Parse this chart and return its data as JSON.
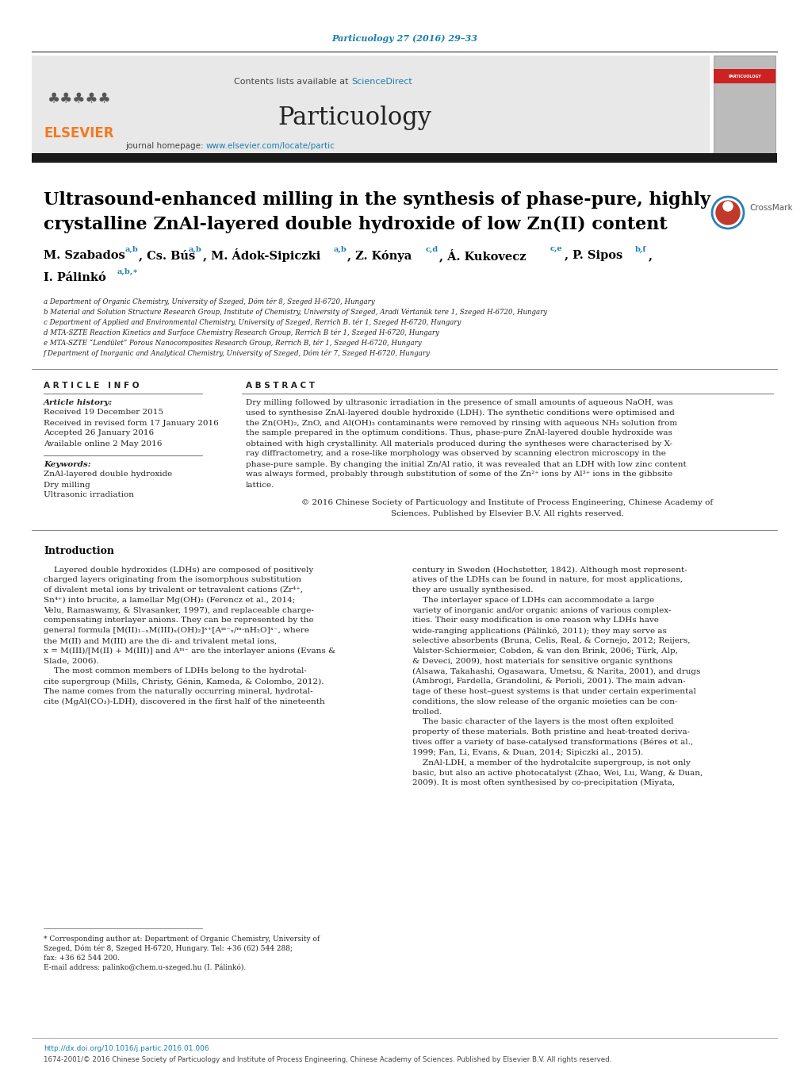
{
  "bg_color": "#ffffff",
  "top_citation": "Particuology 27 (2016) 29–33",
  "top_citation_color": "#1a7fad",
  "header_bg": "#e8e8e8",
  "contents_text": "Contents lists available at ",
  "sciencedirect_text": "ScienceDirect",
  "sciencedirect_color": "#1a7fad",
  "journal_name": "Particuology",
  "journal_homepage_text": "journal homepage: ",
  "journal_url": "www.elsevier.com/locate/partic",
  "journal_url_color": "#1a7fad",
  "elsevier_color": "#f47920",
  "separator_color": "#000000",
  "dark_bar_color": "#1a1a1a",
  "title_line1": "Ultrasound-enhanced milling in the synthesis of phase-pure, highly",
  "title_line2": "crystalline ZnAl-layered double hydroxide of low Zn(II) content",
  "title_color": "#000000",
  "sup_color": "#1a7fad",
  "affil_a": "a Department of Organic Chemistry, University of Szeged, Dóm tér 8, Szeged H-6720, Hungary",
  "affil_b": "b Material and Solution Structure Research Group, Institute of Chemistry, University of Szeged, Aradi Vértanúk tere 1, Szeged H-6720, Hungary",
  "affil_c": "c Department of Applied and Environmental Chemistry, University of Szeged, Rerrich B. tér 1, Szeged H-6720, Hungary",
  "affil_d": "d MTA-SZTE Reaction Kinetics and Surface Chemistry Research Group, Rerrich B tér 1, Szeged H-6720, Hungary",
  "affil_e": "e MTA-SZTE “Lendület” Porous Nanocomposites Research Group, Rerrich B, tér 1, Szeged H-6720, Hungary",
  "affil_f": "f Department of Inorganic and Analytical Chemistry, University of Szeged, Dóm tér 7, Szeged H-6720, Hungary",
  "article_info_header": "A R T I C L E   I N F O",
  "abstract_header": "A B S T R A C T",
  "article_history_label": "Article history:",
  "received1": "Received 19 December 2015",
  "received2": "Received in revised form 17 January 2016",
  "accepted": "Accepted 26 January 2016",
  "available": "Available online 2 May 2016",
  "keywords_label": "Keywords:",
  "keyword1": "ZnAl-layered double hydroxide",
  "keyword2": "Dry milling",
  "keyword3": "Ultrasonic irradiation",
  "abstract_text_lines": [
    "Dry milling followed by ultrasonic irradiation in the presence of small amounts of aqueous NaOH, was",
    "used to synthesise ZnAl-layered double hydroxide (LDH). The synthetic conditions were optimised and",
    "the Zn(OH)₂, ZnO, and Al(OH)₃ contaminants were removed by rinsing with aqueous NH₃ solution from",
    "the sample prepared in the optimum conditions. Thus, phase-pure ZnAl-layered double hydroxide was",
    "obtained with high crystallinity. All materials produced during the syntheses were characterised by X-",
    "ray diffractometry, and a rose-like morphology was observed by scanning electron microscopy in the",
    "phase-pure sample. By changing the initial Zn/Al ratio, it was revealed that an LDH with low zinc content",
    "was always formed, probably through substitution of some of the Zn²⁺ ions by Al³⁺ ions in the gibbsite",
    "lattice."
  ],
  "copyright_line1": "© 2016 Chinese Society of Particuology and Institute of Process Engineering, Chinese Academy of",
  "copyright_line2": "Sciences. Published by Elsevier B.V. All rights reserved.",
  "intro_header": "Introduction",
  "col1_lines": [
    "    Layered double hydroxides (LDHs) are composed of positively",
    "charged layers originating from the isomorphous substitution",
    "of divalent metal ions by trivalent or tetravalent cations (Zr⁴⁺,",
    "Sn⁴⁺) into brucite, a lamellar Mg(OH)₂ (Ferencz et al., 2014;",
    "Velu, Ramaswamy, & Slvasanker, 1997), and replaceable charge-",
    "compensating interlayer anions. They can be represented by the",
    "general formula [M(II)₁₋ₓM(III)ₓ(OH)₂]ˣ⁺[Aᵐ⁻ₓ/ᵐ·nH₂O]ˣ⁻, where",
    "the M(II) and M(III) are the di- and trivalent metal ions,",
    "x = M(III)/[M(II) + M(III)] and Aᵐ⁻ are the interlayer anions (Evans &",
    "Slade, 2006).",
    "    The most common members of LDHs belong to the hydrotal-",
    "cite supergroup (Mills, Christy, Génin, Kameda, & Colombo, 2012).",
    "The name comes from the naturally occurring mineral, hydrotal-",
    "cite (MgAl(CO₃)-LDH), discovered in the first half of the nineteenth"
  ],
  "col2_lines": [
    "century in Sweden (Hochstetter, 1842). Although most represent-",
    "atives of the LDHs can be found in nature, for most applications,",
    "they are usually synthesised.",
    "    The interlayer space of LDHs can accommodate a large",
    "variety of inorganic and/or organic anions of various complex-",
    "ities. Their easy modification is one reason why LDHs have",
    "wide-ranging applications (Pálinkó, 2011); they may serve as",
    "selective absorbents (Bruna, Celis, Real, & Cornejo, 2012; Reijers,",
    "Valster-Schiermeier, Cobden, & van den Brink, 2006; Türk, Alp,",
    "& Deveci, 2009), host materials for sensitive organic synthons",
    "(Alsawa, Takahashi, Ogasawara, Umetsu, & Narita, 2001), and drugs",
    "(Ambrogi, Fardella, Grandolini, & Perioli, 2001). The main advan-",
    "tage of these host–guest systems is that under certain experimental",
    "conditions, the slow release of the organic moieties can be con-",
    "trolled.",
    "    The basic character of the layers is the most often exploited",
    "property of these materials. Both pristine and heat-treated deriva-",
    "tives offer a variety of base-catalysed transformations (Béres et al.,",
    "1999; Fan, Li, Evans, & Duan, 2014; Sipiczki al., 2015).",
    "    ZnAl-LDH, a member of the hydrotalcite supergroup, is not only",
    "basic, but also an active photocatalyst (Zhao, Wei, Lu, Wang, & Duan,",
    "2009). It is most often synthesised by co-precipitation (Miyata,"
  ],
  "footnote_line1": "* Corresponding author at: Department of Organic Chemistry, University of",
  "footnote_line2": "Szeged, Dóm tér 8, Szeged H-6720, Hungary. Tel: +36 (62) 544 288;",
  "footnote_line3": "fax: +36 62 544 200.",
  "footnote_line4": "E-mail address: palinko@chem.u-szeged.hu (I. Pálinkó).",
  "footer_doi": "http://dx.doi.org/10.1016/j.partic.2016.01.006",
  "footer_issn": "1674-2001/© 2016 Chinese Society of Particuology and Institute of Process Engineering, Chinese Academy of Sciences. Published by Elsevier B.V. All rights reserved.",
  "ref_color": "#1a7fad"
}
